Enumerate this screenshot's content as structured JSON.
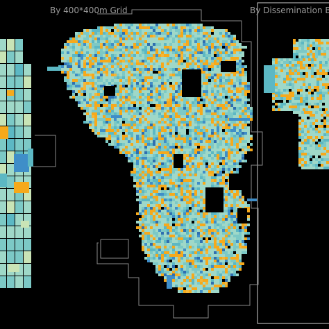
{
  "panels": {
    "grid_title": "By 400*400m Grid",
    "da_title": "By Dissemination B"
  },
  "colors": {
    "background": "#000000",
    "boundary": "#8a8a8a",
    "frame": "#cfcfcf",
    "classes": [
      "#9fd8c8",
      "#7cc9c6",
      "#5cb8c4",
      "#3f8ec8",
      "#2f6fb0",
      "#f6a91b",
      "#f3b73a",
      "#c9e4b6",
      "#a63a2a"
    ]
  }
}
